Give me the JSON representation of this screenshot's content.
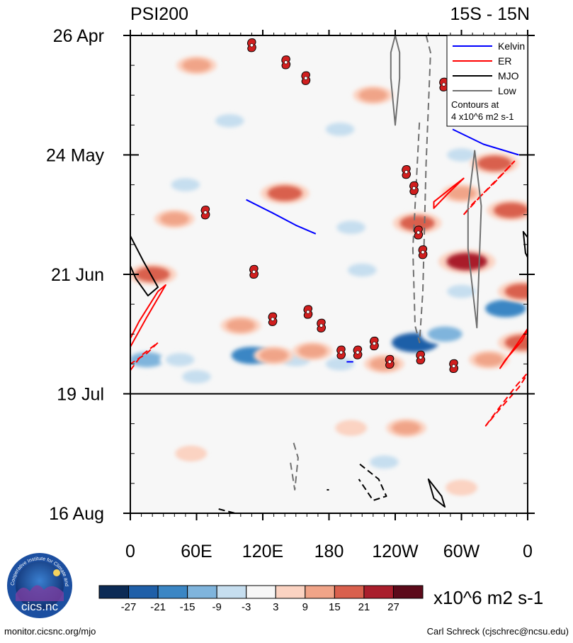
{
  "chart_data": {
    "type": "heatmap",
    "title_left": "PSI200",
    "title_right": "15S - 15N",
    "x_ticks": [
      "0",
      "60E",
      "120E",
      "180",
      "120W",
      "60W",
      "0"
    ],
    "x_tick_values": [
      0,
      60,
      120,
      180,
      240,
      300,
      360
    ],
    "xlim": [
      0,
      360
    ],
    "y_ticks": [
      "26 Apr",
      "24 May",
      "21 Jun",
      "19 Jul",
      "16 Aug"
    ],
    "y_tick_days": [
      0,
      28,
      56,
      84,
      112
    ],
    "ylim_days": [
      0,
      112
    ],
    "today_line_day": 84,
    "colorbar": {
      "levels": [
        "-27",
        "-21",
        "-15",
        "-9",
        "-3",
        "3",
        "9",
        "15",
        "21",
        "27"
      ],
      "colors": [
        "#0b2a55",
        "#1f5fa8",
        "#3b86c4",
        "#7fb4dc",
        "#c6deef",
        "#f7f7f7",
        "#fbd3c2",
        "#f0a488",
        "#d9604d",
        "#a91e2c",
        "#5c0a1a"
      ],
      "units": "x10^6 m2 s-1"
    },
    "legend": {
      "entries": [
        {
          "label": "Kelvin",
          "color": "#0000ff"
        },
        {
          "label": "ER",
          "color": "#ff0000"
        },
        {
          "label": "MJO",
          "color": "#000000"
        },
        {
          "label": "Low",
          "color": "#707070"
        }
      ],
      "note_line1": "Contours at",
      "note_line2": "4 x10^6 m2 s-1",
      "placement": "top-right"
    },
    "anomaly_patches": [
      {
        "lon": 15,
        "day": 76,
        "value": -15
      },
      {
        "lon": 45,
        "day": 76,
        "value": -9
      },
      {
        "lon": 110,
        "day": 75,
        "value": -21
      },
      {
        "lon": 150,
        "day": 76,
        "value": -9
      },
      {
        "lon": 190,
        "day": 77,
        "value": -9
      },
      {
        "lon": 258,
        "day": 72,
        "value": -27
      },
      {
        "lon": 285,
        "day": 70,
        "value": -15
      },
      {
        "lon": 340,
        "day": 64,
        "value": -21
      },
      {
        "lon": 300,
        "day": 60,
        "value": -9
      },
      {
        "lon": 210,
        "day": 55,
        "value": -9
      },
      {
        "lon": 60,
        "day": 80,
        "value": -9
      },
      {
        "lon": 200,
        "day": 45,
        "value": -9
      },
      {
        "lon": 50,
        "day": 35,
        "value": -9
      },
      {
        "lon": 90,
        "day": 20,
        "value": -9
      },
      {
        "lon": 190,
        "day": 22,
        "value": -9
      },
      {
        "lon": 300,
        "day": 28,
        "value": -9
      },
      {
        "lon": 230,
        "day": 100,
        "value": -9
      },
      {
        "lon": 150,
        "day": 108,
        "value": -3
      },
      {
        "lon": 20,
        "day": 56,
        "value": 15
      },
      {
        "lon": 40,
        "day": 43,
        "value": 9
      },
      {
        "lon": 140,
        "day": 37,
        "value": 15
      },
      {
        "lon": 260,
        "day": 44,
        "value": 15
      },
      {
        "lon": 305,
        "day": 53,
        "value": 21
      },
      {
        "lon": 345,
        "day": 41,
        "value": 15
      },
      {
        "lon": 300,
        "day": 37,
        "value": 9
      },
      {
        "lon": 330,
        "day": 30,
        "value": 15
      },
      {
        "lon": 355,
        "day": 60,
        "value": 15
      },
      {
        "lon": 325,
        "day": 76,
        "value": 9
      },
      {
        "lon": 355,
        "day": 72,
        "value": 15
      },
      {
        "lon": 100,
        "day": 68,
        "value": 9
      },
      {
        "lon": 130,
        "day": 75,
        "value": 9
      },
      {
        "lon": 60,
        "day": 7,
        "value": 9
      },
      {
        "lon": 220,
        "day": 14,
        "value": 9
      },
      {
        "lon": 165,
        "day": 74,
        "value": 9
      },
      {
        "lon": 230,
        "day": 77,
        "value": 9
      },
      {
        "lon": 55,
        "day": 98,
        "value": 3
      },
      {
        "lon": 250,
        "day": 92,
        "value": 9
      },
      {
        "lon": 200,
        "day": 92,
        "value": 3
      },
      {
        "lon": 300,
        "day": 106,
        "value": 3
      }
    ],
    "kelvin_contours": [
      {
        "points": [
          [
            105,
            38.5
          ],
          [
            128,
            41.5
          ],
          [
            150,
            44.5
          ],
          [
            168,
            46.5
          ]
        ]
      },
      {
        "points": [
          [
            292,
            22.0
          ],
          [
            320,
            25.5
          ],
          [
            352,
            28.0
          ]
        ]
      },
      {
        "points": [
          [
            196,
            76.5
          ],
          [
            202,
            76.5
          ]
        ]
      }
    ],
    "er_contours": [
      {
        "closed": true,
        "dashed": false,
        "points": [
          [
            0,
            73.0
          ],
          [
            15,
            66.0
          ],
          [
            32,
            58.5
          ],
          [
            25,
            60.0
          ],
          [
            8,
            67.0
          ],
          [
            0,
            71.0
          ]
        ]
      },
      {
        "closed": true,
        "dashed": true,
        "points": [
          [
            0,
            78.5
          ],
          [
            10,
            75.0
          ],
          [
            25,
            72.0
          ],
          [
            15,
            74.5
          ],
          [
            0,
            77.0
          ]
        ]
      },
      {
        "closed": true,
        "dashed": false,
        "points": [
          [
            275,
            40.5
          ],
          [
            288,
            37.0
          ],
          [
            302,
            33.5
          ],
          [
            292,
            35.5
          ],
          [
            275,
            39.0
          ]
        ]
      },
      {
        "closed": true,
        "dashed": true,
        "points": [
          [
            302,
            42.0
          ],
          [
            318,
            37.5
          ],
          [
            335,
            33.0
          ],
          [
            348,
            29.5
          ],
          [
            330,
            34.5
          ],
          [
            310,
            39.5
          ]
        ]
      },
      {
        "closed": true,
        "dashed": false,
        "points": [
          [
            335,
            78.0
          ],
          [
            350,
            72.5
          ],
          [
            362,
            68.0
          ],
          [
            355,
            71.5
          ],
          [
            340,
            76.0
          ]
        ]
      },
      {
        "closed": true,
        "dashed": true,
        "points": [
          [
            322,
            91.5
          ],
          [
            335,
            87.0
          ],
          [
            350,
            82.0
          ],
          [
            362,
            78.5
          ],
          [
            352,
            82.5
          ],
          [
            335,
            87.5
          ]
        ]
      }
    ],
    "mjo_contours": [
      {
        "dashed": false,
        "points": [
          [
            0,
            47
          ],
          [
            12,
            53
          ],
          [
            25,
            59
          ],
          [
            16,
            61
          ],
          [
            5,
            57
          ],
          [
            0,
            54
          ]
        ]
      },
      {
        "dashed": false,
        "points": [
          [
            356,
            46
          ],
          [
            362,
            48
          ],
          [
            362,
            53
          ],
          [
            358,
            51
          ]
        ]
      },
      {
        "dashed": true,
        "points": [
          [
            208,
            100.5
          ],
          [
            225,
            104.0
          ],
          [
            232,
            108.0
          ],
          [
            220,
            109.0
          ],
          [
            207,
            104.0
          ]
        ]
      },
      {
        "dashed": false,
        "points": [
          [
            270,
            104.0
          ],
          [
            282,
            108.0
          ],
          [
            285,
            110.5
          ],
          [
            275,
            108.5
          ]
        ]
      },
      {
        "dashed": true,
        "points": [
          [
            80,
            111.0
          ],
          [
            95,
            112.0
          ]
        ]
      },
      {
        "dashed": false,
        "points": [
          [
            178,
            106.5
          ],
          [
            180,
            106.5
          ]
        ]
      }
    ],
    "low_contours": [
      {
        "dashed": false,
        "points": [
          [
            240,
            0.0
          ],
          [
            244,
            4.0
          ],
          [
            244,
            10.0
          ],
          [
            240,
            21.0
          ],
          [
            236,
            10.0
          ],
          [
            236,
            4.0
          ]
        ]
      },
      {
        "dashed": true,
        "points": [
          [
            268,
            0.0
          ],
          [
            272,
            4.0
          ],
          [
            268,
            30.0
          ],
          [
            265,
            60.0
          ],
          [
            262,
            72.0
          ],
          [
            258,
            68.0
          ],
          [
            256,
            50.0
          ],
          [
            262,
            20.0
          ]
        ]
      },
      {
        "dashed": false,
        "points": [
          [
            312,
            27.0
          ],
          [
            318,
            40.0
          ],
          [
            314,
            68.5
          ],
          [
            306,
            50.0
          ],
          [
            306,
            40.0
          ]
        ]
      },
      {
        "dashed": true,
        "points": [
          [
            148,
            95.5
          ],
          [
            152,
            99.0
          ],
          [
            149,
            106.5
          ],
          [
            145,
            100.0
          ]
        ]
      }
    ],
    "cyclones": [
      {
        "lon": 110,
        "day": 2.3
      },
      {
        "lon": 141,
        "day": 6.3
      },
      {
        "lon": 159,
        "day": 10.0
      },
      {
        "lon": 284,
        "day": 11.5
      },
      {
        "lon": 250,
        "day": 32.0
      },
      {
        "lon": 257,
        "day": 35.8
      },
      {
        "lon": 68,
        "day": 41.5
      },
      {
        "lon": 261,
        "day": 46.2
      },
      {
        "lon": 265,
        "day": 50.8
      },
      {
        "lon": 112,
        "day": 55.4
      },
      {
        "lon": 161,
        "day": 64.8
      },
      {
        "lon": 129,
        "day": 66.5
      },
      {
        "lon": 173,
        "day": 68.0
      },
      {
        "lon": 221,
        "day": 72.2
      },
      {
        "lon": 191,
        "day": 74.3
      },
      {
        "lon": 206,
        "day": 74.3
      },
      {
        "lon": 235,
        "day": 76.5
      },
      {
        "lon": 263,
        "day": 75.5
      },
      {
        "lon": 293,
        "day": 77.5
      }
    ]
  },
  "branding": {
    "logo_text": "cics.nc",
    "logo_ring_text": "Cooperative Institute for Climate and Satellites",
    "website": "monitor.cicsnc.org/mjo",
    "author": "Carl Schreck (cjschrec@ncsu.edu)"
  }
}
